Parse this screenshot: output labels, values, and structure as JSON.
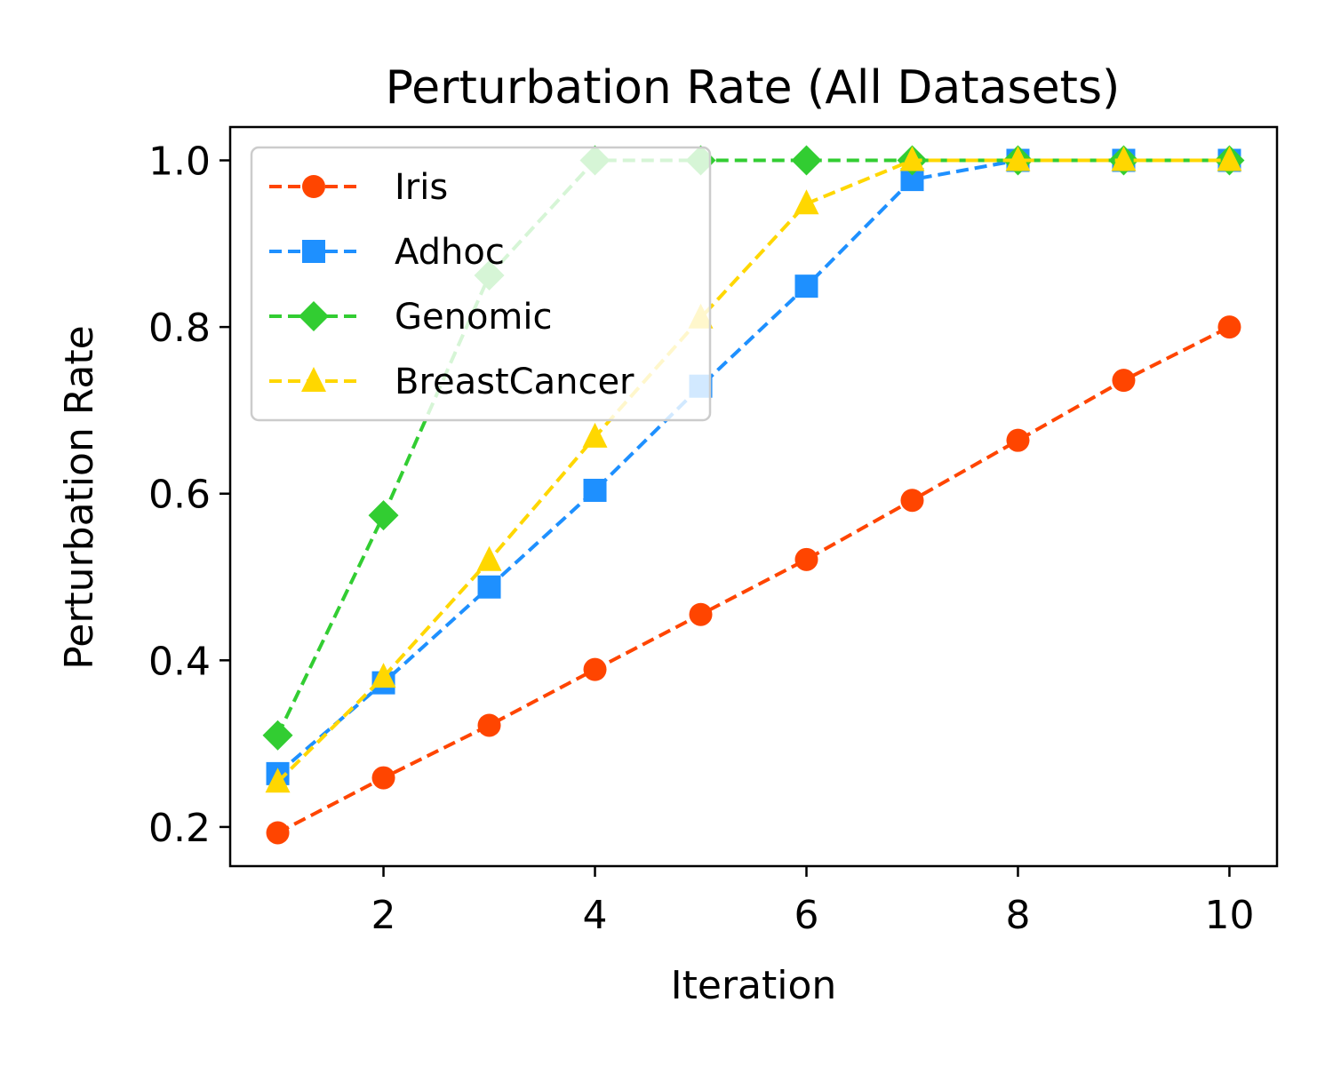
{
  "chart_data": {
    "type": "line",
    "title": "Perturbation Rate (All Datasets)",
    "xlabel": "Iteration",
    "ylabel": "Perturbation Rate",
    "x": [
      1,
      2,
      3,
      4,
      5,
      6,
      7,
      8,
      9,
      10
    ],
    "xlim": [
      0.55,
      10.45
    ],
    "ylim": [
      0.153,
      1.04
    ],
    "xticks": [
      2,
      4,
      6,
      8,
      10
    ],
    "xtick_labels": [
      "2",
      "4",
      "6",
      "8",
      "10"
    ],
    "yticks": [
      0.2,
      0.4,
      0.6,
      0.8,
      1.0
    ],
    "ytick_labels": [
      "0.2",
      "0.4",
      "0.6",
      "0.8",
      "1.0"
    ],
    "grid": false,
    "legend_position": "top-left",
    "series": [
      {
        "name": "Iris",
        "color": "#FF4500",
        "marker": "circle",
        "linestyle": "dashed",
        "values": [
          0.193,
          0.259,
          0.322,
          0.389,
          0.455,
          0.521,
          0.592,
          0.664,
          0.736,
          0.8
        ]
      },
      {
        "name": "Adhoc",
        "color": "#1E90FF",
        "marker": "square",
        "linestyle": "dashed",
        "values": [
          0.264,
          0.373,
          0.488,
          0.604,
          0.729,
          0.849,
          0.977,
          1.0,
          1.0,
          1.0
        ]
      },
      {
        "name": "Genomic",
        "color": "#32CD32",
        "marker": "diamond",
        "linestyle": "dashed",
        "values": [
          0.31,
          0.574,
          0.862,
          1.0,
          1.0,
          1.0,
          1.0,
          1.0,
          1.0,
          1.0
        ]
      },
      {
        "name": "BreastCancer",
        "color": "#FFD700",
        "marker": "triangle",
        "linestyle": "dashed",
        "values": [
          0.254,
          0.38,
          0.52,
          0.668,
          0.811,
          0.948,
          1.0,
          1.0,
          1.0,
          1.0
        ]
      }
    ]
  }
}
